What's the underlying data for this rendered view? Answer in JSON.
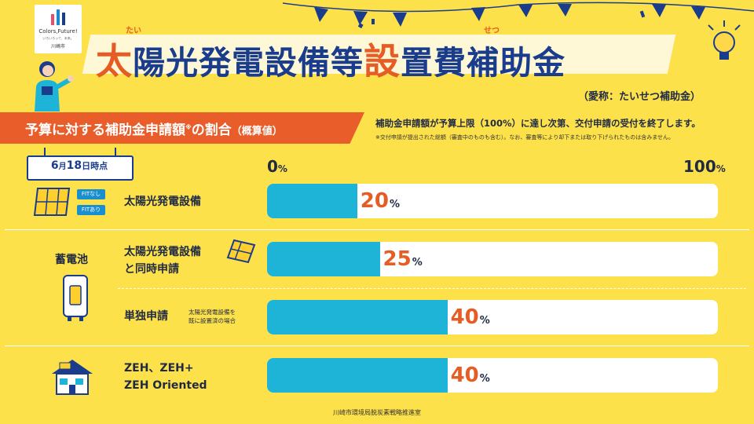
{
  "logo": {
    "text1": "Colors,Future!",
    "text2": "いろいろって、未来。",
    "text3": "川崎市"
  },
  "title": {
    "main_a": "太",
    "main_b": "陽光発電設備等",
    "main_c": "設",
    "main_d": "置費補助金",
    "ruby_1": "たい",
    "ruby_2": "せつ"
  },
  "nickname": "（愛称：たいせつ補助金）",
  "subtitle": {
    "text": "予算に対する補助金申請額",
    "mark": "※",
    "text2": "の割合",
    "paren": "（概算値）"
  },
  "notes": {
    "line1": "補助金申請額が予算上限（100%）に達し次第、交付申請の受付を終了します。",
    "line2": "※交付申請が提出された総額（審査中のものも含む）。なお、審査等により却下または取り下げられたものは含みません。"
  },
  "date": {
    "month": "6",
    "m_suffix": "月",
    "day": "18",
    "d_suffix": "日時点"
  },
  "scale": {
    "min": "0",
    "max": "100",
    "unit": "%"
  },
  "badges": {
    "fit_none": "FITなし",
    "fit_yes": "FITあり"
  },
  "battery_label": "蓄電池",
  "rows": [
    {
      "label1": "太陽光発電設備",
      "label2": "",
      "value": 20,
      "pct_text": "20",
      "unit": "%"
    },
    {
      "label1": "太陽光発電設備",
      "label2": "と同時申請",
      "value": 25,
      "pct_text": "25",
      "unit": "%"
    },
    {
      "label1": "単独申請",
      "label2": "",
      "note1": "太陽光発電設備を",
      "note2": "既に設置済の場合",
      "value": 40,
      "pct_text": "40",
      "unit": "%"
    },
    {
      "label1": "ZEH、ZEH+",
      "label2": "ZEH Oriented",
      "value": 40,
      "pct_text": "40",
      "unit": "%"
    }
  ],
  "footer": "川崎市環境局脱炭素戦略推進室",
  "colors": {
    "background": "#fde14a",
    "accent": "#e65c25",
    "title_blue": "#1a3c8c",
    "bar": "#1eb4d8"
  },
  "icons": [
    "solar-panel-icon",
    "battery-icon",
    "house-icon",
    "lightbulb-icon",
    "person-illustration",
    "bunting-decoration"
  ]
}
